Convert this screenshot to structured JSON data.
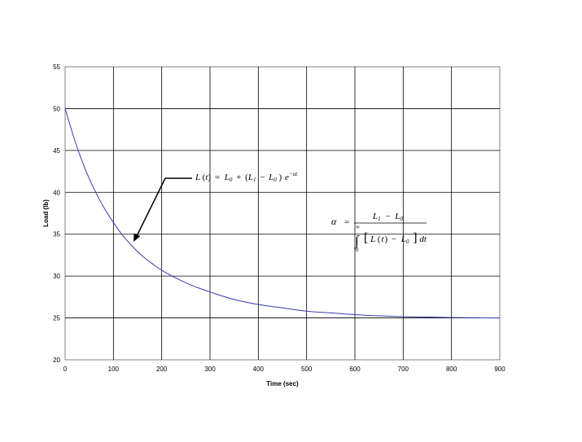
{
  "chart_data": {
    "type": "line",
    "title": "",
    "xlabel": "Time (sec)",
    "ylabel": "Load (lb)",
    "xlim": [
      0,
      900
    ],
    "ylim": [
      20,
      55
    ],
    "x_ticks": [
      "0",
      "100",
      "200",
      "300",
      "400",
      "500",
      "600",
      "700",
      "800",
      "900"
    ],
    "y_ticks": [
      "20",
      "25",
      "30",
      "35",
      "40",
      "45",
      "50",
      "55"
    ],
    "grid": true,
    "legend": "none",
    "series": [
      {
        "color": "#3b3bb0",
        "x": [
          0,
          20,
          40,
          60,
          80,
          100,
          120,
          140,
          160,
          180,
          200,
          225,
          250,
          275,
          300,
          350,
          400,
          450,
          500,
          550,
          600,
          650,
          700,
          750,
          800,
          850,
          900
        ],
        "y": [
          50,
          46.2,
          43.0,
          40.4,
          38.2,
          36.4,
          34.8,
          33.5,
          32.4,
          31.5,
          30.7,
          29.9,
          29.2,
          28.6,
          28.1,
          27.2,
          26.6,
          26.2,
          25.8,
          25.6,
          25.4,
          25.25,
          25.15,
          25.1,
          25.05,
          25.02,
          25.0
        ]
      }
    ],
    "annotations": {
      "equation_1": {
        "L": "L",
        "t": "t",
        "eq": "=",
        "L0": "L",
        "sub0": "0",
        "plus": "+",
        "L1": "L",
        "sub1": "1",
        "minus": "−",
        "L0b": "L",
        "sub0b": "0",
        "e": "e",
        "exp": "−αt",
        "arrow_to": {
          "x": 145,
          "y": 34.5
        }
      },
      "equation_2": {
        "alpha": "α",
        "eq": "=",
        "num_L1": "L",
        "num_sub1": "1",
        "num_minus": "−",
        "num_L0": "L",
        "num_sub0": "0",
        "int_upper": "∞",
        "int_lower": "0",
        "den_L": "L",
        "den_t": "t",
        "den_minus": "−",
        "den_L0": "L",
        "den_sub0": "0",
        "den_dt": "dt"
      }
    }
  }
}
